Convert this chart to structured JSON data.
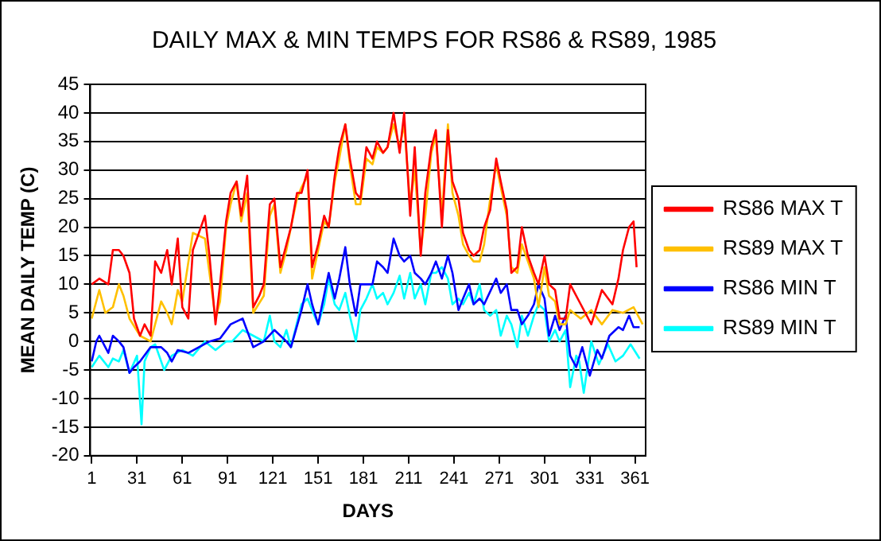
{
  "chart_data": {
    "type": "line",
    "title": "DAILY MAX & MIN TEMPS FOR RS86 & RS89, 1985",
    "xlabel": "DAYS",
    "ylabel": "MEAN DAILY TEMP (C)",
    "xlim": [
      0,
      368
    ],
    "xticks": [
      1,
      31,
      61,
      91,
      121,
      151,
      181,
      211,
      241,
      271,
      301,
      331,
      361
    ],
    "ylim": [
      -20,
      45
    ],
    "yticks": [
      -20,
      -15,
      -10,
      -5,
      0,
      5,
      10,
      15,
      20,
      25,
      30,
      35,
      40,
      45
    ],
    "grid": "y",
    "legend": "right",
    "series": [
      {
        "name": "RS86 MAX T",
        "color": "#ff0000",
        "x": [
          1,
          6,
          12,
          15,
          19,
          22,
          26,
          29,
          33,
          36,
          40,
          43,
          47,
          51,
          54,
          58,
          61,
          65,
          68,
          76,
          79,
          83,
          86,
          90,
          93,
          97,
          100,
          104,
          108,
          112,
          115,
          119,
          122,
          126,
          130,
          133,
          137,
          140,
          144,
          147,
          151,
          155,
          158,
          162,
          165,
          169,
          172,
          176,
          179,
          183,
          187,
          190,
          194,
          197,
          201,
          205,
          208,
          212,
          215,
          219,
          222,
          226,
          229,
          233,
          237,
          240,
          244,
          247,
          251,
          254,
          258,
          261,
          265,
          269,
          272,
          276,
          279,
          283,
          286,
          290,
          294,
          297,
          301,
          304,
          308,
          311,
          315,
          318,
          325,
          332,
          339,
          346,
          350,
          353,
          357,
          360,
          362
        ],
        "values": [
          10,
          11,
          10,
          16,
          16,
          15,
          12,
          4,
          1,
          3,
          1,
          14,
          12,
          16,
          10,
          18,
          6,
          4,
          16,
          22,
          15,
          3,
          10,
          21,
          26,
          28,
          22,
          29,
          6,
          8,
          10,
          24,
          25,
          13,
          17,
          20,
          26,
          26,
          30,
          13,
          17,
          22,
          20,
          29,
          34,
          38,
          32,
          26,
          25,
          34,
          32,
          35,
          33,
          34,
          40,
          33,
          40,
          22,
          34,
          15,
          26,
          34,
          37,
          20,
          37,
          28,
          25,
          19,
          16,
          15,
          16,
          20,
          23,
          32,
          28,
          23,
          12,
          13,
          20,
          15,
          12,
          10,
          15,
          10,
          9,
          4,
          4,
          10,
          6.5,
          3,
          9,
          6.5,
          11,
          16,
          20,
          21,
          13
        ]
      },
      {
        "name": "RS89 MAX T",
        "color": "#ffc000",
        "x": [
          1,
          6,
          10,
          15,
          19,
          22,
          26,
          33,
          40,
          47,
          51,
          54,
          58,
          61,
          68,
          76,
          79,
          83,
          86,
          90,
          93,
          97,
          100,
          104,
          108,
          115,
          119,
          122,
          126,
          130,
          133,
          137,
          140,
          144,
          147,
          151,
          155,
          158,
          162,
          165,
          169,
          172,
          176,
          179,
          183,
          187,
          190,
          194,
          197,
          201,
          205,
          208,
          212,
          215,
          219,
          222,
          226,
          229,
          233,
          237,
          240,
          244,
          247,
          251,
          254,
          258,
          261,
          265,
          269,
          272,
          276,
          279,
          283,
          286,
          290,
          294,
          297,
          301,
          304,
          308,
          311,
          315,
          318,
          325,
          332,
          339,
          346,
          353,
          360,
          366
        ],
        "values": [
          4,
          9,
          5,
          6,
          10,
          8,
          4,
          1,
          0,
          7,
          5,
          3,
          9,
          7,
          19,
          18,
          12,
          4,
          7,
          20,
          24,
          28,
          21,
          26,
          5,
          8,
          22,
          24,
          12,
          16,
          20,
          25,
          27,
          29,
          11,
          16,
          21,
          20,
          28,
          32,
          38,
          31,
          24,
          24,
          32,
          31,
          34,
          33,
          34,
          38,
          34,
          38,
          24,
          30,
          16,
          22,
          33,
          36,
          22,
          38,
          26,
          22,
          17,
          15,
          14,
          14,
          17,
          25,
          31,
          27,
          22,
          13,
          12,
          17,
          14,
          11,
          6,
          13,
          8,
          7,
          3,
          3,
          5.5,
          4,
          5.5,
          3,
          5.5,
          5,
          6,
          3
        ]
      },
      {
        "name": "RS86 MIN T",
        "color": "#0000ff",
        "x": [
          1,
          4,
          6,
          12,
          15,
          19,
          22,
          26,
          29,
          33,
          40,
          47,
          51,
          54,
          58,
          65,
          72,
          79,
          86,
          93,
          101,
          108,
          115,
          122,
          130,
          133,
          140,
          144,
          147,
          151,
          158,
          162,
          165,
          169,
          172,
          176,
          179,
          187,
          190,
          194,
          197,
          201,
          205,
          208,
          212,
          215,
          219,
          222,
          226,
          229,
          233,
          237,
          240,
          244,
          247,
          251,
          254,
          258,
          261,
          269,
          272,
          276,
          279,
          283,
          286,
          290,
          294,
          297,
          301,
          304,
          308,
          311,
          315,
          318,
          322,
          326,
          331,
          336,
          339,
          344,
          350,
          353,
          357,
          360,
          364
        ],
        "values": [
          -3.5,
          0,
          1,
          -2,
          1,
          0,
          -1,
          -5.5,
          -4.5,
          -3.5,
          -1,
          -1,
          -2,
          -3.5,
          -1.5,
          -2,
          -1,
          0,
          0.5,
          3,
          4,
          -1,
          0,
          2,
          0,
          -1,
          5.5,
          10,
          6.5,
          3,
          12,
          7.5,
          11,
          16.5,
          10,
          4.5,
          10,
          10,
          14,
          13,
          12,
          18,
          15,
          14,
          15,
          12,
          11,
          10,
          12,
          14,
          11,
          15,
          12,
          5.5,
          7.5,
          10,
          6.5,
          7.5,
          6.5,
          11,
          8.5,
          10,
          5.5,
          5.5,
          3,
          4.5,
          6.5,
          10,
          7.5,
          1,
          4.5,
          2,
          4.5,
          -2.5,
          -4.5,
          -1,
          -6,
          -1.5,
          -3,
          1,
          2.5,
          2,
          4.5,
          2.5,
          2.5
        ]
      },
      {
        "name": "RS89 MIN T",
        "color": "#00ffff",
        "x": [
          1,
          6,
          12,
          15,
          19,
          22,
          26,
          31,
          34,
          36,
          40,
          43,
          49,
          54,
          61,
          68,
          76,
          83,
          90,
          94,
          101,
          108,
          115,
          119,
          122,
          126,
          130,
          133,
          140,
          144,
          147,
          151,
          155,
          158,
          162,
          165,
          169,
          172,
          176,
          179,
          183,
          187,
          190,
          194,
          197,
          201,
          205,
          208,
          212,
          215,
          219,
          222,
          226,
          229,
          233,
          237,
          240,
          244,
          247,
          251,
          254,
          258,
          261,
          265,
          269,
          272,
          276,
          279,
          283,
          286,
          290,
          294,
          297,
          301,
          304,
          308,
          311,
          315,
          318,
          322,
          324,
          327,
          332,
          337,
          343,
          348,
          353,
          358,
          364
        ],
        "values": [
          -4.5,
          -2.5,
          -4.5,
          -3,
          -3.5,
          -1.5,
          -5.5,
          -2.5,
          -14.5,
          -3.5,
          -1,
          -0.5,
          -5,
          -2.5,
          -1.5,
          -2.5,
          0,
          -1.5,
          0,
          0,
          2,
          1,
          0,
          4.5,
          0,
          -1,
          2,
          -1,
          6.5,
          7.5,
          5.5,
          3,
          6.5,
          11,
          6.5,
          5.5,
          8.5,
          4.5,
          0,
          5.5,
          7.5,
          10,
          7.5,
          8.5,
          6.5,
          8.5,
          11.5,
          7.5,
          12,
          7.5,
          10,
          6.5,
          12,
          12,
          13,
          11,
          6.5,
          7.5,
          6.5,
          8.5,
          6.5,
          10,
          5.5,
          4.5,
          5.5,
          1,
          4.5,
          3,
          -1,
          4.5,
          1,
          4.5,
          6.5,
          5.5,
          0,
          2,
          0,
          2,
          -8,
          -2.5,
          -3.5,
          -9,
          0,
          -4,
          -0.5,
          -3.5,
          -2.5,
          -0.5,
          -3
        ]
      }
    ]
  }
}
